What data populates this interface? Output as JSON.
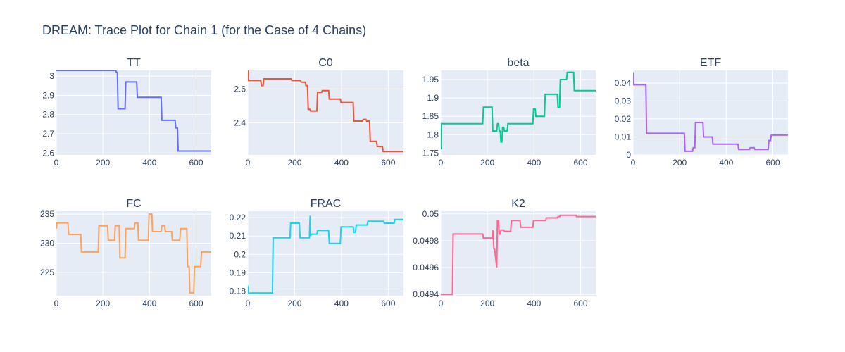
{
  "title": "DREAM: Trace Plot for Chain 1 (for the Case of 4 Chains)",
  "chart_data": [
    {
      "type": "line",
      "name": "TT",
      "color": "#636efa",
      "xlim": [
        0,
        665
      ],
      "ylim": [
        2.59,
        3.03
      ],
      "xticks": [
        0,
        200,
        400,
        600
      ],
      "yticks": [
        2.6,
        2.7,
        2.8,
        2.9,
        3.0
      ],
      "ytick_labels": [
        "2.6",
        "2.7",
        "2.8",
        "2.9",
        "3"
      ],
      "x": [
        0,
        255,
        258,
        262,
        265,
        295,
        298,
        345,
        348,
        450,
        453,
        510,
        513,
        520,
        523,
        665
      ],
      "y": [
        3.03,
        3.03,
        3.02,
        3.02,
        2.83,
        2.83,
        2.97,
        2.97,
        2.89,
        2.89,
        2.77,
        2.77,
        2.73,
        2.73,
        2.61,
        2.61
      ]
    },
    {
      "type": "line",
      "name": "C0",
      "color": "#ef553b",
      "xlim": [
        0,
        665
      ],
      "ylim": [
        2.21,
        2.71
      ],
      "xticks": [
        0,
        200,
        400,
        600
      ],
      "yticks": [
        2.4,
        2.6
      ],
      "ytick_labels": [
        "2.4",
        "2.6"
      ],
      "x": [
        0,
        3,
        55,
        58,
        65,
        68,
        185,
        188,
        225,
        228,
        245,
        248,
        255,
        258,
        265,
        268,
        295,
        298,
        315,
        318,
        345,
        348,
        395,
        398,
        450,
        453,
        490,
        493,
        505,
        508,
        520,
        523,
        550,
        553,
        575,
        578,
        665
      ],
      "y": [
        2.71,
        2.65,
        2.65,
        2.62,
        2.62,
        2.66,
        2.66,
        2.65,
        2.65,
        2.64,
        2.64,
        2.62,
        2.62,
        2.48,
        2.48,
        2.47,
        2.47,
        2.58,
        2.58,
        2.59,
        2.59,
        2.54,
        2.54,
        2.52,
        2.52,
        2.41,
        2.41,
        2.42,
        2.42,
        2.41,
        2.41,
        2.29,
        2.29,
        2.26,
        2.26,
        2.23,
        2.23
      ]
    },
    {
      "type": "line",
      "name": "beta",
      "color": "#00cc96",
      "xlim": [
        0,
        665
      ],
      "ylim": [
        1.745,
        1.975
      ],
      "xticks": [
        0,
        200,
        400,
        600
      ],
      "yticks": [
        1.75,
        1.8,
        1.85,
        1.9,
        1.95
      ],
      "ytick_labels": [
        "1.75",
        "1.8",
        "1.85",
        "1.9",
        "1.95"
      ],
      "x": [
        0,
        3,
        180,
        183,
        220,
        223,
        240,
        243,
        248,
        251,
        255,
        258,
        262,
        265,
        270,
        273,
        285,
        288,
        395,
        398,
        405,
        408,
        445,
        448,
        500,
        503,
        510,
        513,
        540,
        543,
        570,
        573,
        665
      ],
      "y": [
        1.76,
        1.83,
        1.83,
        1.875,
        1.875,
        1.81,
        1.81,
        1.83,
        1.83,
        1.81,
        1.81,
        1.78,
        1.78,
        1.82,
        1.82,
        1.81,
        1.81,
        1.83,
        1.83,
        1.87,
        1.87,
        1.85,
        1.85,
        1.91,
        1.91,
        1.875,
        1.875,
        1.95,
        1.95,
        1.97,
        1.97,
        1.92,
        1.92
      ]
    },
    {
      "type": "line",
      "name": "ETF",
      "color": "#ab63fa",
      "xlim": [
        0,
        665
      ],
      "ylim": [
        0,
        0.047
      ],
      "xticks": [
        0,
        200,
        400,
        600
      ],
      "yticks": [
        0,
        0.01,
        0.02,
        0.03,
        0.04
      ],
      "ytick_labels": [
        "0",
        "0.01",
        "0.02",
        "0.03",
        "0.04"
      ],
      "x": [
        0,
        3,
        55,
        58,
        220,
        223,
        255,
        258,
        265,
        268,
        300,
        303,
        340,
        343,
        450,
        453,
        500,
        503,
        520,
        523,
        580,
        583,
        590,
        593,
        665
      ],
      "y": [
        0.046,
        0.039,
        0.039,
        0.012,
        0.012,
        0.002,
        0.002,
        0.004,
        0.004,
        0.018,
        0.018,
        0.01,
        0.01,
        0.006,
        0.006,
        0.003,
        0.003,
        0.004,
        0.004,
        0.003,
        0.003,
        0.008,
        0.008,
        0.011,
        0.011
      ]
    },
    {
      "type": "line",
      "name": "FC",
      "color": "#ffa15a",
      "xlim": [
        0,
        665
      ],
      "ylim": [
        221,
        235.5
      ],
      "xticks": [
        0,
        200,
        400,
        600
      ],
      "yticks": [
        225,
        230,
        235
      ],
      "ytick_labels": [
        "225",
        "230",
        "235"
      ],
      "x": [
        0,
        3,
        50,
        53,
        105,
        108,
        180,
        183,
        220,
        223,
        250,
        253,
        270,
        273,
        295,
        298,
        335,
        338,
        350,
        353,
        395,
        398,
        410,
        413,
        450,
        453,
        465,
        468,
        495,
        498,
        530,
        533,
        560,
        563,
        570,
        573,
        590,
        593,
        620,
        623,
        665
      ],
      "y": [
        232.5,
        233.5,
        233.5,
        231.5,
        231.5,
        228.5,
        228.5,
        233,
        233,
        230.5,
        230.5,
        233,
        233,
        227.5,
        227.5,
        232.5,
        232.5,
        233.5,
        233.5,
        230.5,
        230.5,
        235,
        235,
        232,
        232,
        233,
        233,
        232,
        232,
        230.5,
        230.5,
        232.5,
        232.5,
        226,
        226,
        221.5,
        221.5,
        226,
        226,
        228.5,
        228.5
      ]
    },
    {
      "type": "line",
      "name": "FRAC",
      "color": "#19d3f3",
      "xlim": [
        0,
        665
      ],
      "ylim": [
        0.1775,
        0.2235
      ],
      "xticks": [
        0,
        200,
        400,
        600
      ],
      "yticks": [
        0.18,
        0.19,
        0.2,
        0.21,
        0.22
      ],
      "ytick_labels": [
        "0.18",
        "0.19",
        "0.2",
        "0.21",
        "0.22"
      ],
      "x": [
        0,
        3,
        105,
        108,
        180,
        183,
        220,
        223,
        263,
        266,
        268,
        271,
        295,
        298,
        345,
        348,
        395,
        398,
        450,
        453,
        460,
        463,
        510,
        513,
        580,
        583,
        625,
        628,
        665
      ],
      "y": [
        0.183,
        0.179,
        0.179,
        0.209,
        0.209,
        0.217,
        0.217,
        0.209,
        0.209,
        0.221,
        0.21,
        0.211,
        0.211,
        0.213,
        0.213,
        0.206,
        0.206,
        0.215,
        0.215,
        0.212,
        0.212,
        0.216,
        0.216,
        0.218,
        0.218,
        0.217,
        0.217,
        0.219,
        0.219
      ]
    },
    {
      "type": "line",
      "name": "K2",
      "color": "#ff6692",
      "xlim": [
        0,
        665
      ],
      "ylim": [
        0.04939,
        0.05002
      ],
      "xticks": [
        0,
        200,
        400,
        600
      ],
      "yticks": [
        0.0494,
        0.0496,
        0.0498,
        0.05
      ],
      "ytick_labels": [
        "0.0494",
        "0.0496",
        "0.0498",
        "0.05"
      ],
      "x": [
        0,
        50,
        53,
        180,
        183,
        220,
        223,
        228,
        231,
        240,
        243,
        248,
        251,
        255,
        258,
        270,
        273,
        300,
        303,
        340,
        343,
        395,
        398,
        450,
        453,
        500,
        503,
        510,
        513,
        540,
        543,
        580,
        583,
        665
      ],
      "y": [
        0.0494,
        0.0494,
        0.04985,
        0.04985,
        0.04982,
        0.04982,
        0.04988,
        0.04974,
        0.04974,
        0.0496,
        0.04995,
        0.04995,
        0.04985,
        0.04985,
        0.04988,
        0.04988,
        0.04987,
        0.04987,
        0.04995,
        0.04995,
        0.0499,
        0.0499,
        0.04995,
        0.04995,
        0.04997,
        0.04997,
        0.04998,
        0.04998,
        0.04999,
        0.04999,
        0.04999,
        0.04999,
        0.04998,
        0.04998
      ]
    }
  ]
}
